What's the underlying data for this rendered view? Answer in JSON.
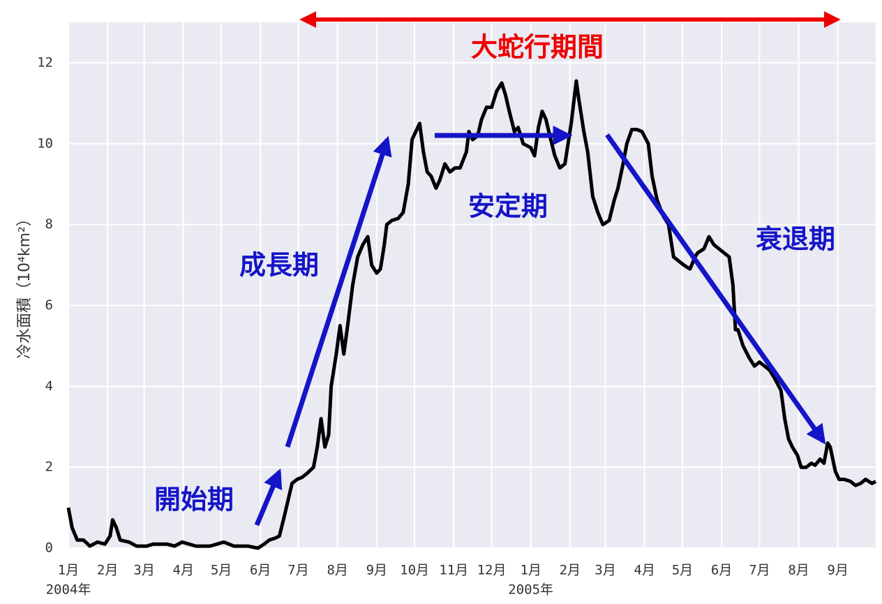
{
  "chart_data": {
    "type": "line",
    "ylabel": "冷水面積（10⁴km²）",
    "color": "#000000",
    "grid": true,
    "xlim": [
      0,
      639
    ],
    "ylim": [
      0,
      13
    ],
    "yticks": [
      0,
      2,
      4,
      6,
      8,
      10,
      12
    ],
    "xticks": [
      {
        "value": 0,
        "label": "1月"
      },
      {
        "value": 31,
        "label": "2月"
      },
      {
        "value": 60,
        "label": "3月"
      },
      {
        "value": 91,
        "label": "4月"
      },
      {
        "value": 121,
        "label": "5月"
      },
      {
        "value": 152,
        "label": "6月"
      },
      {
        "value": 182,
        "label": "7月"
      },
      {
        "value": 213,
        "label": "8月"
      },
      {
        "value": 244,
        "label": "9月"
      },
      {
        "value": 274,
        "label": "10月"
      },
      {
        "value": 305,
        "label": "11月"
      },
      {
        "value": 335,
        "label": "12月"
      },
      {
        "value": 366,
        "label": "1月"
      },
      {
        "value": 397,
        "label": "2月"
      },
      {
        "value": 425,
        "label": "3月"
      },
      {
        "value": 456,
        "label": "4月"
      },
      {
        "value": 486,
        "label": "5月"
      },
      {
        "value": 517,
        "label": "6月"
      },
      {
        "value": 547,
        "label": "7月"
      },
      {
        "value": 578,
        "label": "8月"
      },
      {
        "value": 609,
        "label": "9月"
      }
    ],
    "xtick_years": [
      {
        "value": 0,
        "label": "2004年"
      },
      {
        "value": 366,
        "label": "2005年"
      }
    ],
    "annotations": [
      {
        "text": "大蛇行期間",
        "color": "#ee0000"
      },
      {
        "text": "開始期",
        "color": "#1414c8"
      },
      {
        "text": "成長期",
        "color": "#1414c8"
      },
      {
        "text": "安定期",
        "color": "#1414c8"
      },
      {
        "text": "衰退期",
        "color": "#1414c8"
      }
    ],
    "x": [
      0,
      3,
      7,
      12,
      17,
      23,
      29,
      33,
      35,
      38,
      41,
      48,
      54,
      62,
      67,
      78,
      84,
      90,
      101,
      112,
      123,
      131,
      142,
      150,
      155,
      159,
      164,
      167,
      171,
      177,
      181,
      185,
      189,
      194,
      197,
      200,
      203,
      206,
      208,
      212,
      215,
      218,
      221,
      225,
      229,
      233,
      237,
      240,
      244,
      247,
      250,
      252,
      256,
      261,
      265,
      269,
      272,
      275,
      278,
      281,
      284,
      287,
      291,
      294,
      298,
      302,
      306,
      310,
      315,
      317,
      320,
      324,
      327,
      331,
      335,
      339,
      343,
      346,
      349,
      353,
      356,
      360,
      366,
      369,
      372,
      375,
      378,
      381,
      385,
      389,
      393,
      398,
      402,
      404,
      408,
      411,
      415,
      419,
      423,
      428,
      432,
      435,
      439,
      442,
      446,
      450,
      454,
      459,
      462,
      466,
      471,
      475,
      479,
      483,
      487,
      492,
      496,
      498,
      503,
      507,
      511,
      515,
      519,
      523,
      526,
      528,
      530,
      534,
      539,
      543,
      547,
      551,
      555,
      559,
      564,
      567,
      570,
      573,
      577,
      580,
      584,
      588,
      591,
      595,
      598,
      601,
      603,
      607,
      610,
      614,
      619,
      623,
      627,
      631,
      636,
      639
    ],
    "values": [
      1.0,
      0.5,
      0.2,
      0.2,
      0.05,
      0.15,
      0.1,
      0.3,
      0.7,
      0.5,
      0.2,
      0.15,
      0.05,
      0.05,
      0.1,
      0.1,
      0.05,
      0.15,
      0.05,
      0.05,
      0.15,
      0.05,
      0.05,
      0.0,
      0.1,
      0.2,
      0.25,
      0.3,
      0.8,
      1.6,
      1.7,
      1.75,
      1.85,
      2.0,
      2.5,
      3.2,
      2.5,
      2.8,
      4.0,
      4.8,
      5.5,
      4.8,
      5.5,
      6.5,
      7.2,
      7.5,
      7.7,
      7.0,
      6.8,
      6.9,
      7.5,
      8.0,
      8.1,
      8.15,
      8.3,
      9.0,
      10.1,
      10.3,
      10.5,
      9.8,
      9.3,
      9.2,
      8.9,
      9.1,
      9.5,
      9.3,
      9.4,
      9.4,
      9.8,
      10.3,
      10.1,
      10.2,
      10.6,
      10.9,
      10.9,
      11.3,
      11.5,
      11.2,
      10.8,
      10.3,
      10.4,
      10.0,
      9.9,
      9.7,
      10.4,
      10.8,
      10.6,
      10.2,
      9.7,
      9.4,
      9.5,
      10.5,
      11.55,
      11.1,
      10.3,
      9.8,
      8.7,
      8.3,
      8.0,
      8.1,
      8.6,
      8.9,
      9.5,
      10.0,
      10.35,
      10.35,
      10.3,
      10.0,
      9.2,
      8.6,
      8.2,
      8.0,
      7.2,
      7.1,
      7.0,
      6.9,
      7.2,
      7.3,
      7.4,
      7.7,
      7.5,
      7.4,
      7.3,
      7.2,
      6.5,
      5.4,
      5.4,
      5.0,
      4.7,
      4.5,
      4.6,
      4.5,
      4.4,
      4.2,
      3.9,
      3.2,
      2.7,
      2.5,
      2.3,
      2.0,
      2.0,
      2.1,
      2.05,
      2.2,
      2.1,
      2.6,
      2.5,
      1.9,
      1.7,
      1.7,
      1.65,
      1.55,
      1.6,
      1.7,
      1.6,
      1.65
    ]
  }
}
